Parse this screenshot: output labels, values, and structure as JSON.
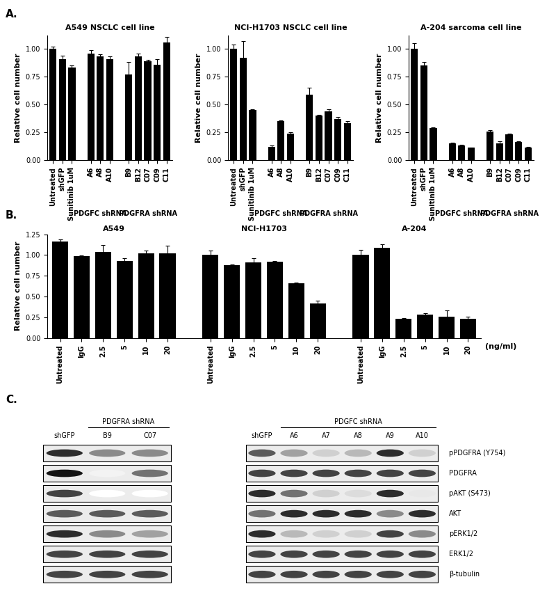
{
  "panel_labels": [
    "A.",
    "B.",
    "C."
  ],
  "chart_data": [
    {
      "type": "bar",
      "title": "A549 NSCLC cell line",
      "y_label": "Relative cell number",
      "color": "#000000",
      "categories": [
        "Untreated",
        "shGFP",
        "Sunitinib 1uM",
        null,
        "A6",
        "A8",
        "A10",
        null,
        "B9",
        "B12",
        "C07",
        "C09",
        "C11"
      ],
      "values": [
        1.0,
        0.91,
        0.83,
        null,
        0.96,
        0.93,
        0.91,
        null,
        0.77,
        0.93,
        0.89,
        0.86,
        1.06
      ],
      "errors": [
        0.02,
        0.03,
        0.02,
        null,
        0.03,
        0.02,
        0.02,
        null,
        0.11,
        0.03,
        0.01,
        0.05,
        0.05
      ],
      "groups": [
        {
          "label": "PDGFC shRNA",
          "span": [
            4,
            6
          ]
        },
        {
          "label": "PDGFRA shRNA",
          "span": [
            8,
            12
          ]
        }
      ],
      "ylim": [
        0,
        1.12
      ],
      "yticks": [
        {
          "value": 0,
          "label": "0.00"
        },
        {
          "value": 0.25,
          "label": "0.25"
        },
        {
          "value": 0.5,
          "label": "0.50"
        },
        {
          "value": 0.75,
          "label": "0.75"
        },
        {
          "value": 1.0,
          "label": "1.00"
        }
      ]
    },
    {
      "type": "bar",
      "title": "NCI-H1703 NSCLC cell line",
      "y_label": "Relative cell number",
      "color": "#000000",
      "categories": [
        "Untreated",
        "shGFP",
        "Sunitinib 1uM",
        null,
        "A6",
        "A8",
        "A10",
        null,
        "B9",
        "B12",
        "C07",
        "C09",
        "C11"
      ],
      "values": [
        1.0,
        0.92,
        0.45,
        null,
        0.12,
        0.35,
        0.24,
        null,
        0.59,
        0.4,
        0.44,
        0.37,
        0.33
      ],
      "errors": [
        0.04,
        0.15,
        0.01,
        null,
        0.01,
        0.01,
        0.01,
        null,
        0.06,
        0.01,
        0.02,
        0.02,
        0.02
      ],
      "groups": [
        {
          "label": "PDGFC shRNA",
          "span": [
            4,
            6
          ]
        },
        {
          "label": "PDGFRA shRNA",
          "span": [
            8,
            12
          ]
        }
      ],
      "ylim": [
        0,
        1.12
      ],
      "yticks": [
        {
          "value": 0,
          "label": "0.00"
        },
        {
          "value": 0.25,
          "label": "0.25"
        },
        {
          "value": 0.5,
          "label": "0.50"
        },
        {
          "value": 0.75,
          "label": "0.75"
        },
        {
          "value": 1.0,
          "label": "1.00"
        }
      ]
    },
    {
      "type": "bar",
      "title": "A-204 sarcoma cell line",
      "y_label": "Relative cell number",
      "color": "#000000",
      "categories": [
        "Untreated",
        "shGFP",
        "Sunitinib 1uM",
        null,
        "A6",
        "A8",
        "A10",
        null,
        "B9",
        "B12",
        "C07",
        "C09",
        "C11"
      ],
      "values": [
        1.0,
        0.85,
        0.29,
        null,
        0.15,
        0.13,
        0.11,
        null,
        0.26,
        0.15,
        0.23,
        0.16,
        0.11
      ],
      "errors": [
        0.05,
        0.03,
        0.005,
        null,
        0.005,
        0.005,
        0.005,
        null,
        0.01,
        0.02,
        0.01,
        0.01,
        0.01
      ],
      "groups": [
        {
          "label": "PDGFC shRNA",
          "span": [
            4,
            6
          ]
        },
        {
          "label": "PDGFRA shRNA",
          "span": [
            8,
            12
          ]
        }
      ],
      "ylim": [
        0,
        1.12
      ],
      "yticks": [
        {
          "value": 0,
          "label": "0.00"
        },
        {
          "value": 0.25,
          "label": "0.25"
        },
        {
          "value": 0.5,
          "label": "0.50"
        },
        {
          "value": 0.75,
          "label": "0.75"
        },
        {
          "value": 1.0,
          "label": "1.00"
        }
      ]
    },
    {
      "type": "bar",
      "y_label": "Relative cell number",
      "color": "#000000",
      "categories": [
        "Untreated",
        "IgG",
        "2.5",
        "5",
        "10",
        "20",
        null,
        "Untreated",
        "IgG",
        "2.5",
        "5",
        "10",
        "20",
        null,
        "Untreated",
        "IgG",
        "2.5",
        "5",
        "10",
        "20"
      ],
      "values": [
        1.16,
        0.99,
        1.04,
        0.93,
        1.02,
        1.02,
        null,
        1.0,
        0.88,
        0.91,
        0.92,
        0.66,
        0.42,
        null,
        1.0,
        1.09,
        0.23,
        0.28,
        0.26,
        0.23
      ],
      "errors": [
        0.03,
        0.005,
        0.08,
        0.03,
        0.03,
        0.09,
        null,
        0.05,
        0.005,
        0.05,
        0.01,
        0.005,
        0.03,
        null,
        0.06,
        0.04,
        0.01,
        0.02,
        0.07,
        0.03
      ],
      "groups": [
        {
          "label": "A549",
          "span": [
            0,
            5
          ]
        },
        {
          "label": "NCI-H1703",
          "span": [
            7,
            12
          ]
        },
        {
          "label": "A-204",
          "span": [
            14,
            19
          ]
        }
      ],
      "annotations": [
        "(ng/ml)"
      ],
      "ylim": [
        0,
        1.25
      ],
      "yticks": [
        {
          "value": 0,
          "label": "0.00"
        },
        {
          "value": 0.25,
          "label": "0.25"
        },
        {
          "value": 0.5,
          "label": "0.50"
        },
        {
          "value": 0.75,
          "label": "0.75"
        },
        {
          "value": 1.0,
          "label": "1.00"
        },
        {
          "value": 1.25,
          "label": "1.25"
        }
      ]
    }
  ],
  "blot_rows": [
    "pPDGFRA (Y754)",
    "PDGFRA",
    "pAKT (S473)",
    "AKT",
    "pERK1/2",
    "ERK1/2",
    "β-tubulin"
  ],
  "blots": [
    {
      "header": "PDGFRA shRNA",
      "header_span": [
        1,
        2
      ],
      "lanes": [
        "shGFP",
        "B9",
        "C07"
      ],
      "intensity": [
        [
          0.9,
          0.5,
          0.5
        ],
        [
          1.0,
          0.05,
          0.6
        ],
        [
          0.8,
          0.0,
          0.0
        ],
        [
          0.7,
          0.7,
          0.7
        ],
        [
          0.9,
          0.5,
          0.4
        ],
        [
          0.8,
          0.8,
          0.8
        ],
        [
          0.8,
          0.8,
          0.8
        ]
      ]
    },
    {
      "header": "PDGFC shRNA",
      "header_span": [
        1,
        5
      ],
      "lanes": [
        "shGFP",
        "A6",
        "A7",
        "A8",
        "A9",
        "A10"
      ],
      "intensity": [
        [
          0.7,
          0.4,
          0.2,
          0.3,
          0.9,
          0.2
        ],
        [
          0.8,
          0.8,
          0.8,
          0.8,
          0.8,
          0.8
        ],
        [
          0.9,
          0.6,
          0.2,
          0.15,
          0.9,
          0.1
        ],
        [
          0.6,
          0.9,
          0.9,
          0.9,
          0.5,
          0.9
        ],
        [
          0.9,
          0.3,
          0.2,
          0.2,
          0.8,
          0.5
        ],
        [
          0.8,
          0.8,
          0.8,
          0.8,
          0.8,
          0.8
        ],
        [
          0.8,
          0.8,
          0.8,
          0.8,
          0.8,
          0.8
        ]
      ]
    }
  ]
}
